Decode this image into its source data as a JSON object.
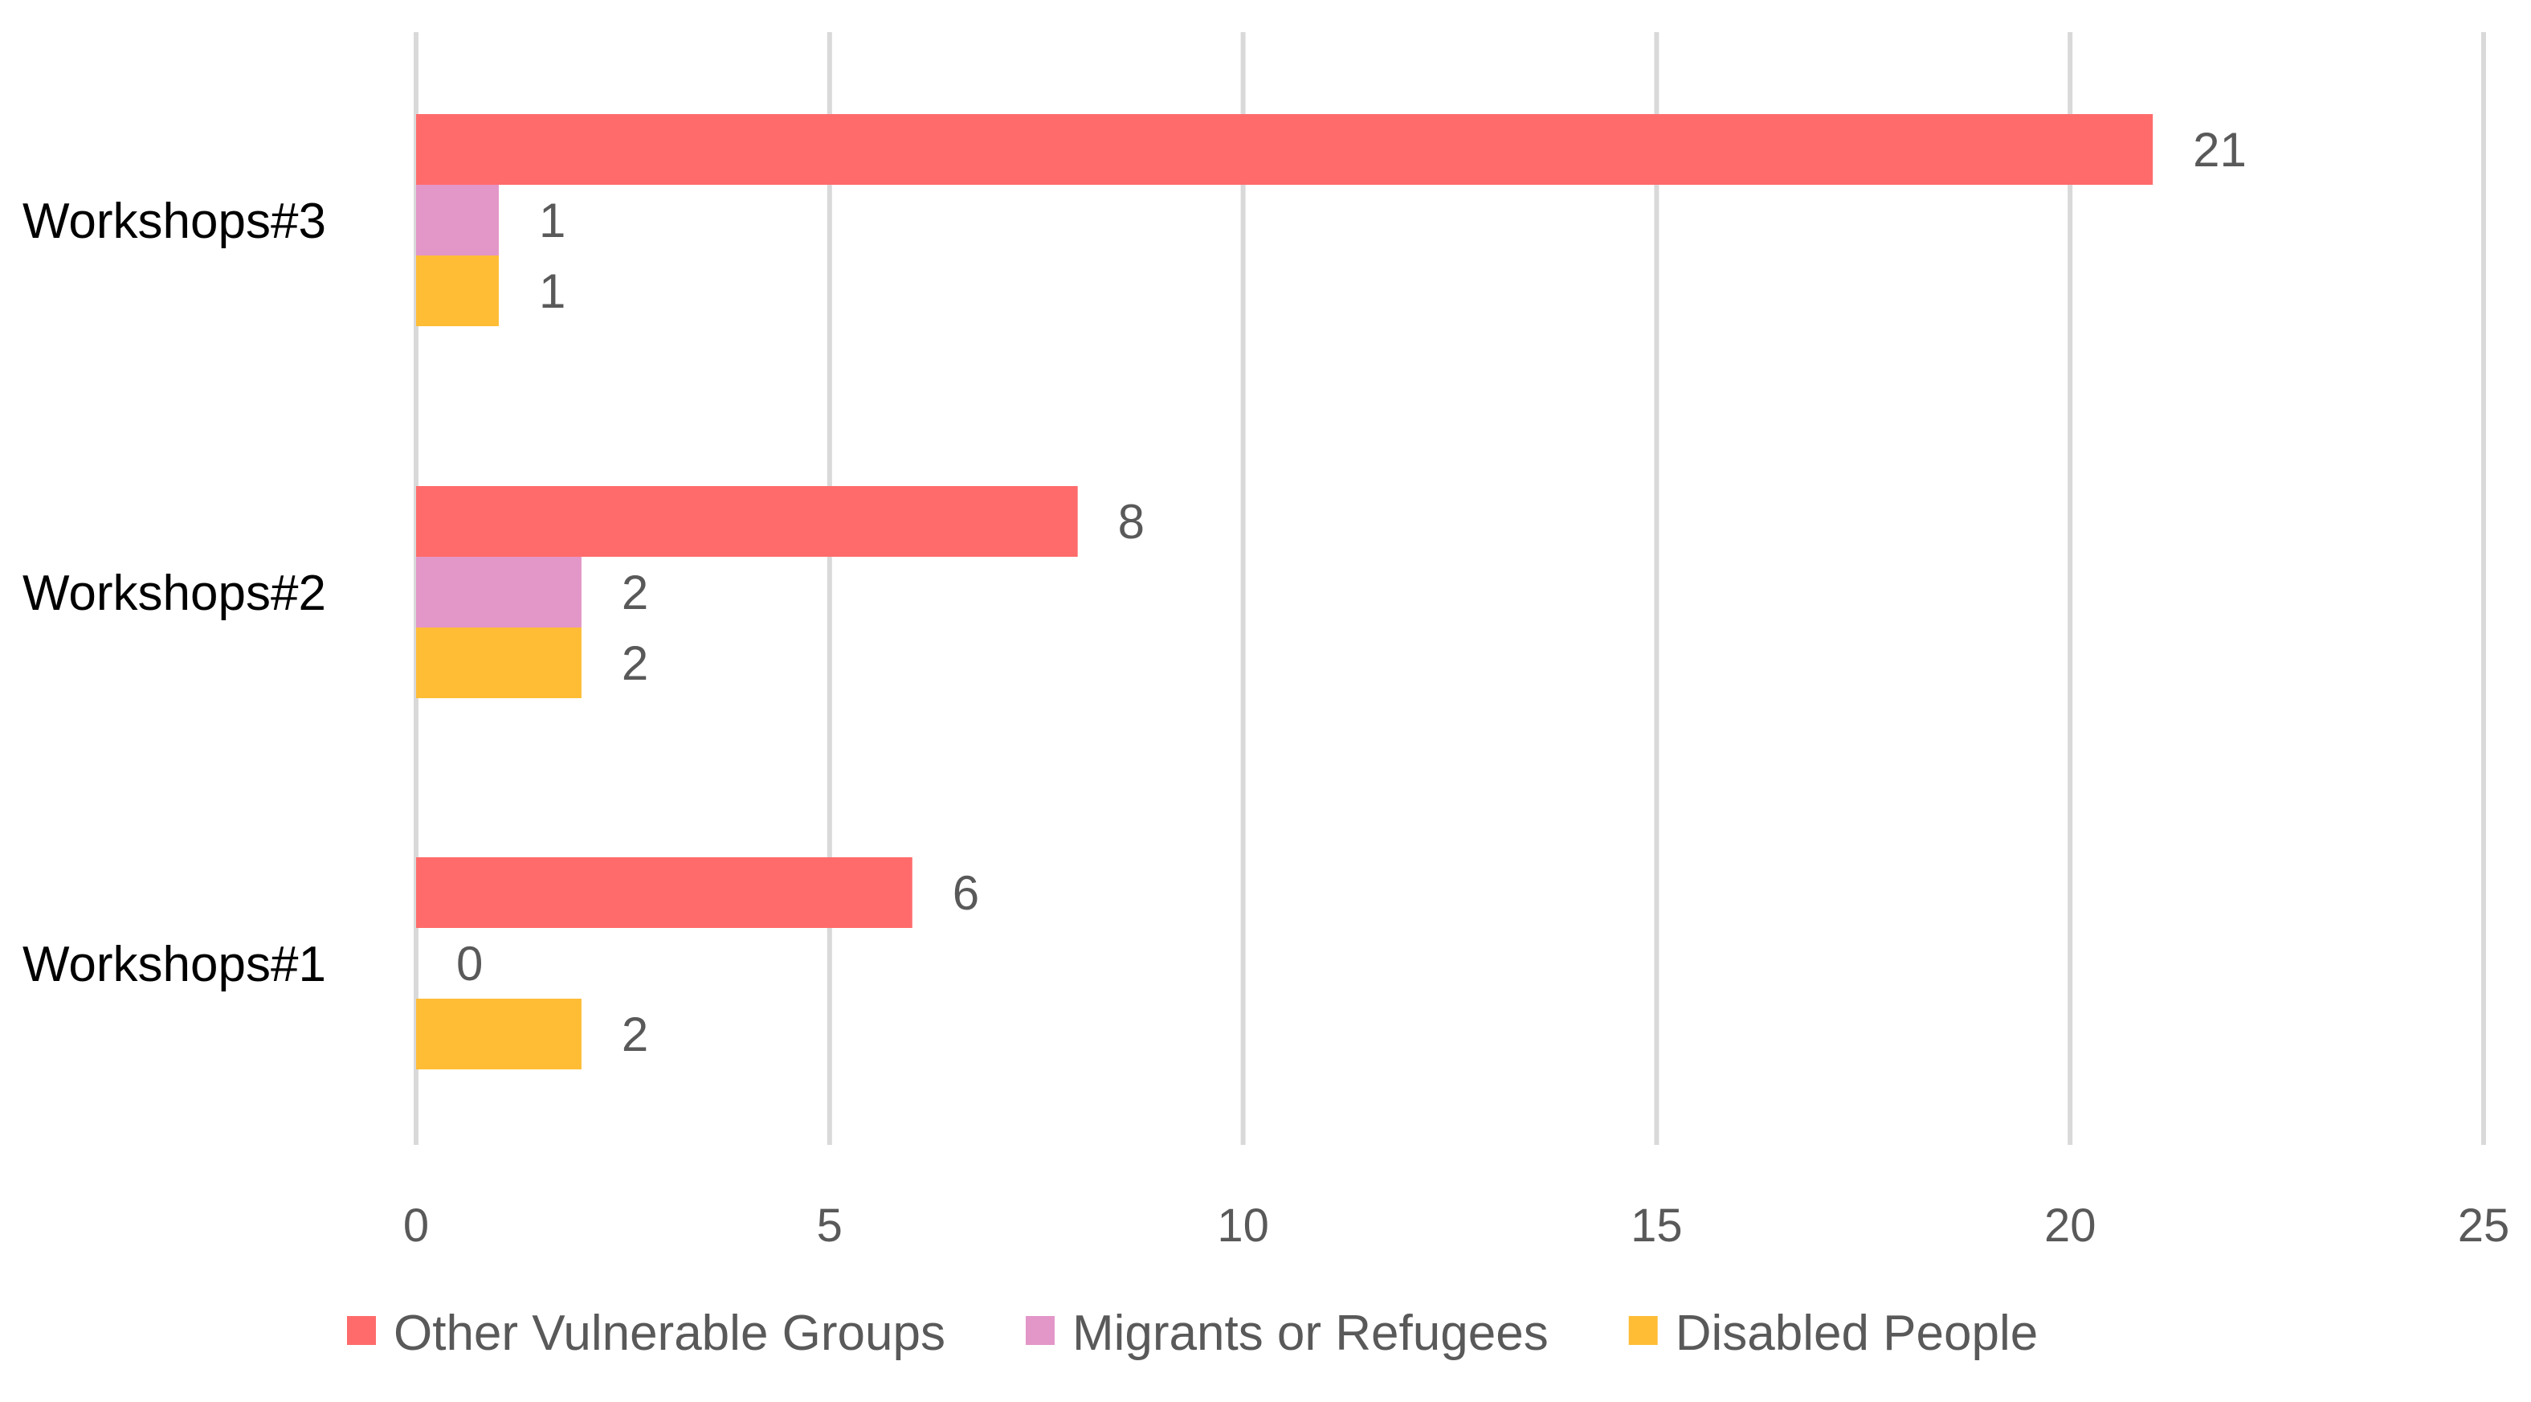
{
  "chart_data": {
    "type": "bar",
    "orientation": "horizontal",
    "title": "",
    "xlabel": "",
    "ylabel": "",
    "xlim": [
      0,
      25
    ],
    "x_ticks": [
      0,
      5,
      10,
      15,
      20,
      25
    ],
    "grid": true,
    "legend_position": "bottom",
    "categories": [
      "Workshops#1",
      "Workshops#2",
      "Workshops#3"
    ],
    "series": [
      {
        "name": "Other Vulnerable Groups",
        "color": "#ff6b6b",
        "values": [
          6,
          8,
          21
        ]
      },
      {
        "name": "Migrants or Refugees",
        "color": "#e396c8",
        "values": [
          0,
          2,
          1
        ]
      },
      {
        "name": "Disabled People",
        "color": "#ffbd36",
        "values": [
          2,
          2,
          1
        ]
      }
    ]
  }
}
